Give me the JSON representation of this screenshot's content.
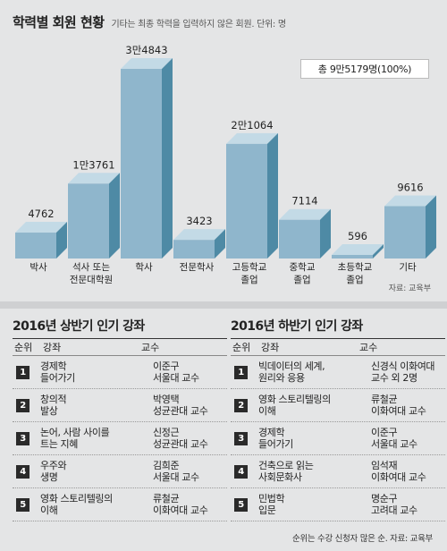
{
  "header": {
    "title": "학력별 회원 현황",
    "subtitle": "기타는 최종 학력을 입력하지 않은 회원. 단위: 명",
    "total": "총 9만5179명(100%)",
    "source": "자료: 교육부"
  },
  "colors": {
    "bar_front": "#8fb6cc",
    "bar_top": "#c3dae6",
    "bar_side": "#4e8aa5",
    "background": "#e4e5e6",
    "badge": "#2a2a2a"
  },
  "chart_data": {
    "type": "bar",
    "title": "학력별 회원 현황",
    "unit": "명",
    "categories": [
      "박사",
      "석사 또는\n전문대학원",
      "학사",
      "전문학사",
      "고등학교\n졸업",
      "중학교\n졸업",
      "초등학교\n졸업",
      "기타"
    ],
    "values": [
      4762,
      13761,
      34843,
      3423,
      21064,
      7114,
      596,
      9616
    ],
    "value_labels": [
      "4762",
      "1만3761",
      "3만4843",
      "3423",
      "2만1064",
      "7114",
      "596",
      "9616"
    ],
    "ylim": [
      0,
      34843
    ],
    "grid": false,
    "legend": "none"
  },
  "first_half": {
    "title": "2016년 상반기 인기 강좌",
    "col_rank": "순위",
    "col_course": "강좌",
    "col_prof": "교수",
    "rows": [
      {
        "rank": "1",
        "course": "경제학\n들어가기",
        "prof": "이준구\n서울대 교수"
      },
      {
        "rank": "2",
        "course": "창의적\n발상",
        "prof": "박영택\n성균관대 교수"
      },
      {
        "rank": "3",
        "course": "논어, 사람 사이를\n트는 지혜",
        "prof": "신정근\n성균관대 교수"
      },
      {
        "rank": "4",
        "course": "우주와\n생명",
        "prof": "김희준\n서울대 교수"
      },
      {
        "rank": "5",
        "course": "영화 스토리텔링의\n이해",
        "prof": "류철균\n이화여대 교수"
      }
    ]
  },
  "second_half": {
    "title": "2016년 하반기 인기 강좌",
    "col_rank": "순위",
    "col_course": "강좌",
    "col_prof": "교수",
    "rows": [
      {
        "rank": "1",
        "course": "빅데이터의 세계,\n원리와 응용",
        "prof": "신경식 이화여대\n교수 외 2명"
      },
      {
        "rank": "2",
        "course": "영화 스토리텔링의\n이해",
        "prof": "류철균\n이화여대 교수"
      },
      {
        "rank": "3",
        "course": "경제학\n들어가기",
        "prof": "이준구\n서울대 교수"
      },
      {
        "rank": "4",
        "course": "건축으로 읽는\n사회문화사",
        "prof": "임석재\n이화여대 교수"
      },
      {
        "rank": "5",
        "course": "민법학\n입문",
        "prof": "명순구\n고려대 교수"
      }
    ]
  },
  "footnote": "순위는 수강 신청자 많은 순. 자료: 교육부"
}
